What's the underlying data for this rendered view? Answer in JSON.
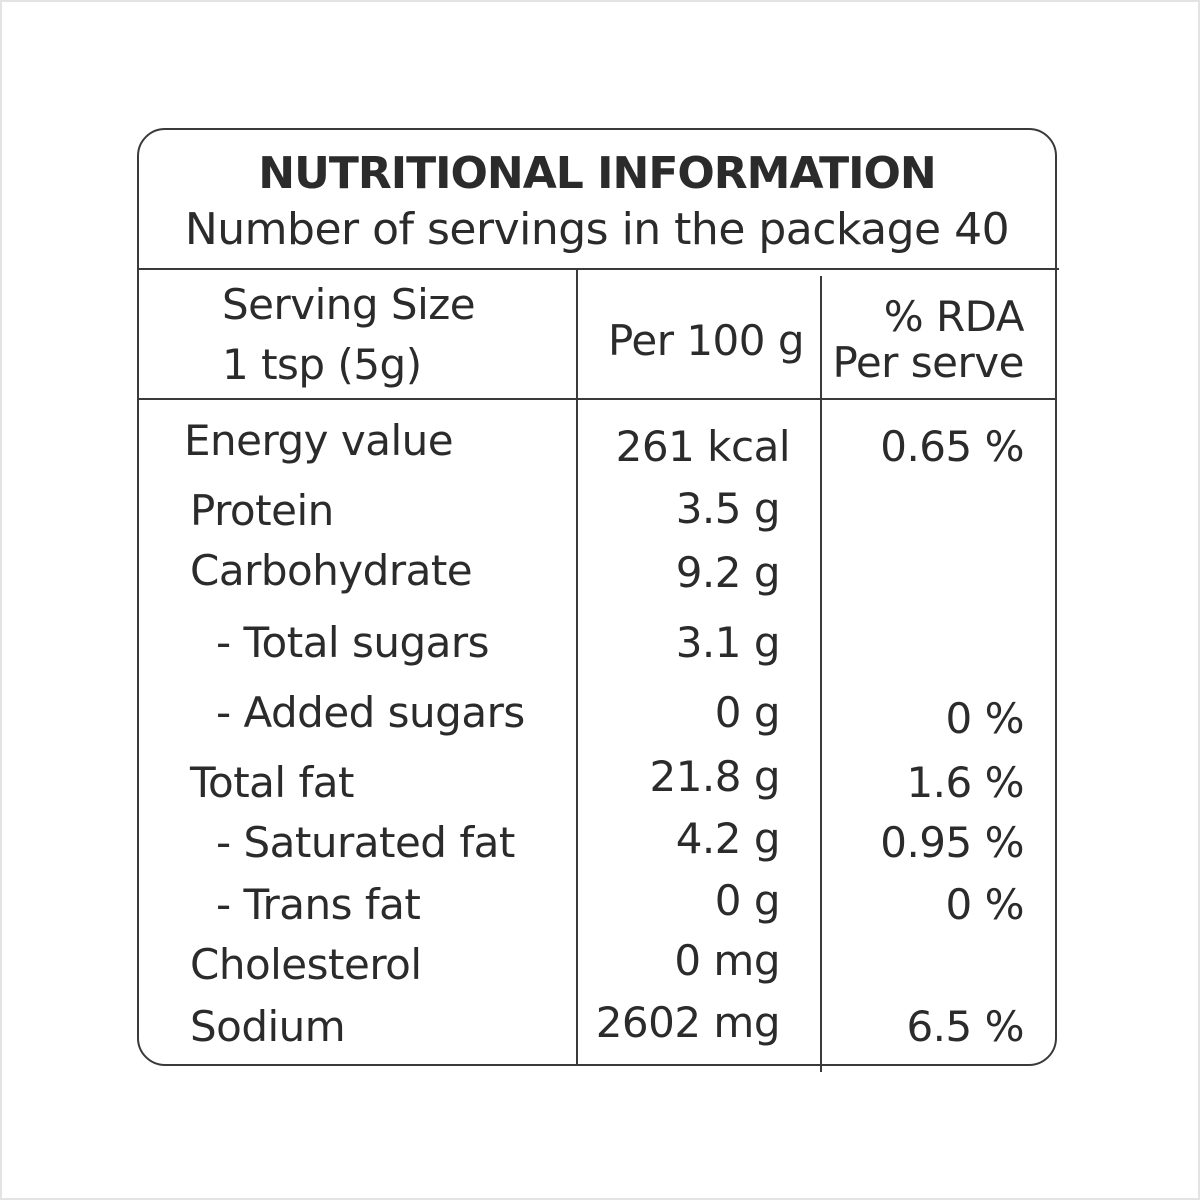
{
  "label": {
    "title": "NUTRITIONAL INFORMATION",
    "subtitle": "Number of servings in the package 40",
    "header": {
      "serving_line1": "Serving Size",
      "serving_line2": "1 tsp (5g)",
      "per100": "Per 100 g",
      "rda_line1": "% RDA",
      "rda_line2": "Per serve"
    },
    "rows": [
      {
        "label": "Energy value",
        "value": "261 kcal",
        "rda": "0.65 %"
      },
      {
        "label": "Protein",
        "value": "3.5 g",
        "rda": ""
      },
      {
        "label": "Carbohydrate",
        "value": "9.2 g",
        "rda": ""
      },
      {
        "label": "- Total sugars",
        "value": "3.1 g",
        "rda": ""
      },
      {
        "label": "- Added sugars",
        "value": "0 g",
        "rda": "0 %"
      },
      {
        "label": "Total fat",
        "value": "21.8 g",
        "rda": "1.6 %"
      },
      {
        "label": "- Saturated fat",
        "value": "4.2 g",
        "rda": "0.95 %"
      },
      {
        "label": "- Trans fat",
        "value": "0 g",
        "rda": "0 %"
      },
      {
        "label": "Cholesterol",
        "value": "0 mg",
        "rda": ""
      },
      {
        "label": "Sodium",
        "value": "2602 mg",
        "rda": "6.5 %"
      }
    ]
  }
}
